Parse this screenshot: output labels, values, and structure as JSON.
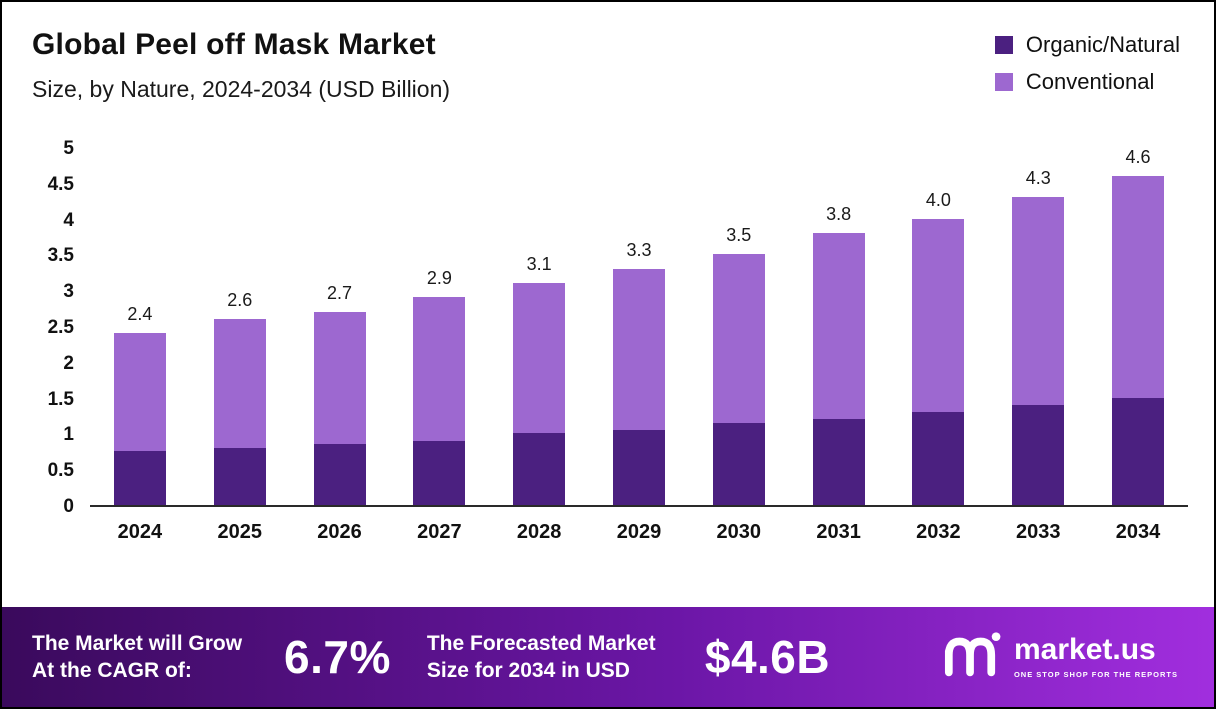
{
  "header": {
    "title": "Global Peel off Mask Market",
    "subtitle": "Size, by Nature, 2024-2034 (USD Billion)"
  },
  "legend": [
    {
      "label": "Organic/Natural",
      "color": "#4b2080"
    },
    {
      "label": "Conventional",
      "color": "#9d68d0"
    }
  ],
  "chart_data": {
    "type": "bar",
    "stacked": true,
    "title": "Global Peel off Mask Market Size, by Nature, 2024-2034 (USD Billion)",
    "categories": [
      "2024",
      "2025",
      "2026",
      "2027",
      "2028",
      "2029",
      "2030",
      "2031",
      "2032",
      "2033",
      "2034"
    ],
    "series": [
      {
        "name": "Organic/Natural",
        "color": "#4b2080",
        "values": [
          0.75,
          0.8,
          0.85,
          0.9,
          1.0,
          1.05,
          1.15,
          1.2,
          1.3,
          1.4,
          1.5
        ]
      },
      {
        "name": "Conventional",
        "color": "#9d68d0",
        "values": [
          1.65,
          1.8,
          1.85,
          2.0,
          2.1,
          2.25,
          2.35,
          2.6,
          2.7,
          2.9,
          3.1
        ]
      }
    ],
    "totals": [
      "2.4",
      "2.6",
      "2.7",
      "2.9",
      "3.1",
      "3.3",
      "3.5",
      "3.8",
      "4.0",
      "4.3",
      "4.6"
    ],
    "xlabel": "",
    "ylabel": "",
    "ylim": [
      0,
      5
    ],
    "yticks": [
      "5",
      "4.5",
      "4",
      "3.5",
      "3",
      "2.5",
      "2",
      "1.5",
      "1",
      "0.5",
      "0"
    ],
    "grid": false,
    "legend_position": "top-right"
  },
  "footer": {
    "cagr_label": "The Market will Grow At the CAGR of:",
    "cagr_value": "6.7%",
    "forecast_label": "The Forecasted Market Size for 2034 in USD",
    "forecast_value": "$4.6B",
    "brand": "market.us",
    "brand_tagline": "ONE STOP SHOP FOR THE REPORTS"
  }
}
